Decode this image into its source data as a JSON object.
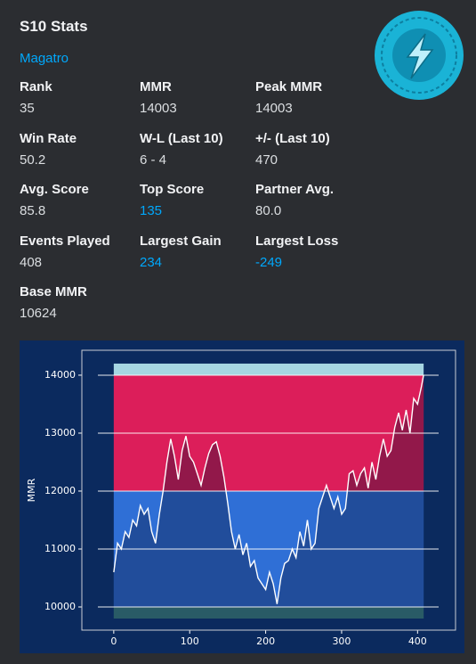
{
  "embed": {
    "title": "S10 Stats",
    "author": "Magatro",
    "fields": [
      {
        "name": "Rank",
        "value": "35"
      },
      {
        "name": "MMR",
        "value": "14003"
      },
      {
        "name": "Peak MMR",
        "value": "14003"
      },
      {
        "name": "Win Rate",
        "value": "50.2"
      },
      {
        "name": "W-L (Last 10)",
        "value": "6 - 4"
      },
      {
        "name": "+/- (Last 10)",
        "value": "470"
      },
      {
        "name": "Avg. Score",
        "value": "85.8"
      },
      {
        "name": "Top Score",
        "value": "135",
        "color": "#00a8fc"
      },
      {
        "name": "Partner Avg.",
        "value": "80.0"
      },
      {
        "name": "Events Played",
        "value": "408"
      },
      {
        "name": "Largest Gain",
        "value": "234",
        "color": "#00a8fc"
      },
      {
        "name": "Largest Loss",
        "value": "-249",
        "color": "#00a8fc"
      },
      {
        "name": "Base MMR",
        "value": "10624"
      }
    ]
  },
  "chart_data": {
    "type": "line",
    "y_label": "MMR",
    "x": [
      0,
      5,
      10,
      15,
      20,
      25,
      30,
      35,
      40,
      45,
      50,
      55,
      60,
      65,
      70,
      75,
      80,
      85,
      90,
      95,
      100,
      105,
      110,
      115,
      120,
      125,
      130,
      135,
      140,
      145,
      150,
      155,
      160,
      165,
      170,
      175,
      180,
      185,
      190,
      195,
      200,
      205,
      210,
      215,
      220,
      225,
      230,
      235,
      240,
      245,
      250,
      255,
      260,
      265,
      270,
      275,
      280,
      285,
      290,
      295,
      300,
      305,
      310,
      315,
      320,
      325,
      330,
      335,
      340,
      345,
      350,
      355,
      360,
      365,
      370,
      375,
      380,
      385,
      390,
      395,
      400,
      405,
      408
    ],
    "series": [
      {
        "name": "MMR",
        "color": "#ffffff",
        "values": [
          10600,
          11100,
          11000,
          11300,
          11200,
          11500,
          11400,
          11750,
          11600,
          11700,
          11300,
          11100,
          11600,
          12000,
          12500,
          12900,
          12600,
          12200,
          12700,
          12950,
          12600,
          12500,
          12300,
          12100,
          12400,
          12650,
          12800,
          12850,
          12600,
          12250,
          11800,
          11300,
          11000,
          11250,
          10900,
          11100,
          10700,
          10800,
          10500,
          10400,
          10300,
          10600,
          10400,
          10050,
          10500,
          10750,
          10800,
          11000,
          10850,
          11300,
          11050,
          11500,
          11000,
          11100,
          11700,
          11900,
          12100,
          11900,
          11700,
          11900,
          11600,
          11700,
          12300,
          12350,
          12100,
          12300,
          12400,
          12050,
          12500,
          12200,
          12600,
          12900,
          12600,
          12700,
          13100,
          13350,
          13050,
          13400,
          13000,
          13600,
          13500,
          13800,
          14003
        ]
      }
    ],
    "bands": [
      {
        "from": 14000,
        "to": 14200,
        "color": "#a6d6e2"
      },
      {
        "from": 12000,
        "to": 14000,
        "color": "#dc1e5a"
      },
      {
        "from": 10000,
        "to": 12000,
        "color": "#2f6fd6"
      },
      {
        "from": 9800,
        "to": 10000,
        "color": "#3b8484"
      }
    ],
    "xlim": [
      -42,
      450
    ],
    "ylim": [
      9600,
      14430
    ],
    "xticks": [
      0,
      100,
      200,
      300,
      400
    ],
    "yticks": [
      10000,
      11000,
      12000,
      13000,
      14000
    ],
    "grid": true
  }
}
